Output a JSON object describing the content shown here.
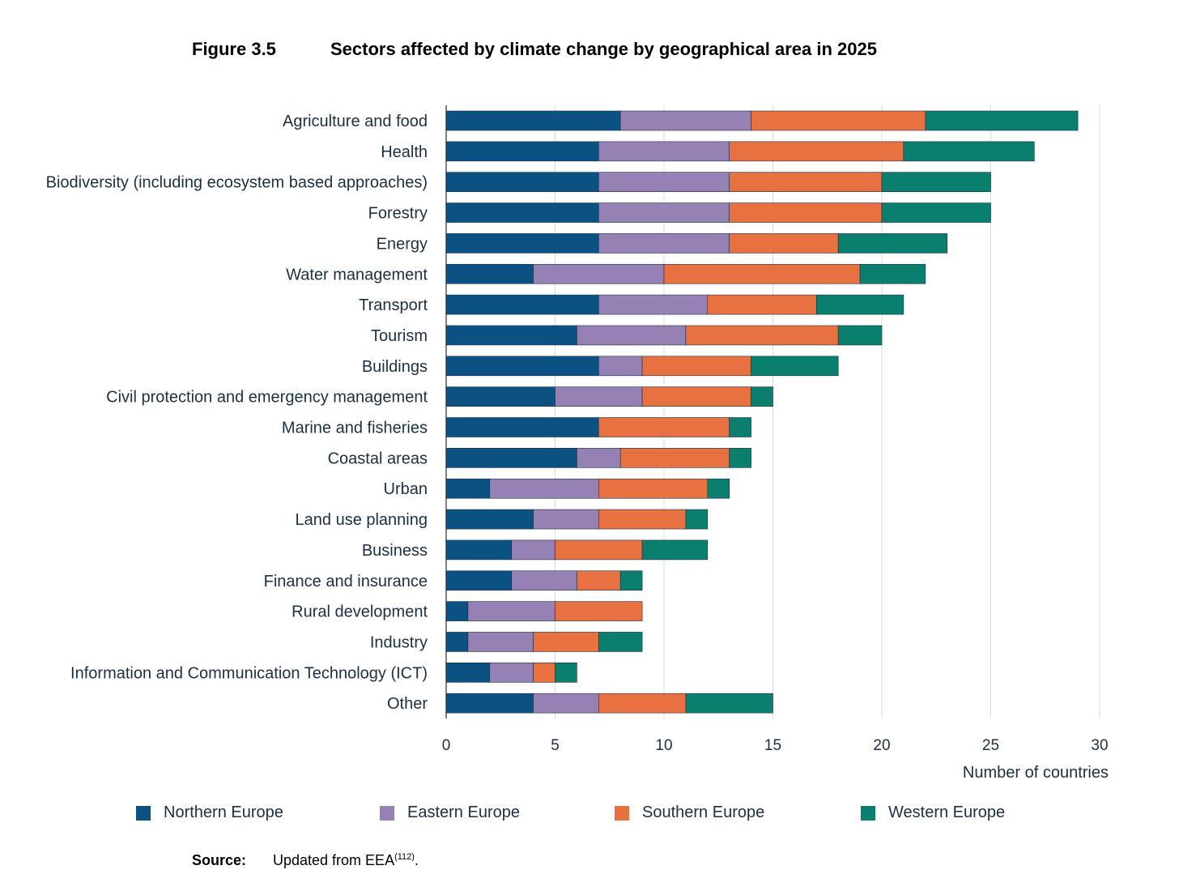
{
  "figure": {
    "number": "Figure 3.5",
    "title": "Sectors affected by climate change by geographical area in 2025"
  },
  "source": {
    "label": "Source:",
    "text": "Updated from EEA",
    "ref": "(112)",
    "end": "."
  },
  "chart_data": {
    "type": "bar",
    "orientation": "horizontal",
    "stacked": true,
    "title": "Sectors affected by climate change by geographical area in 2025",
    "xlabel": "Number of countries",
    "ylabel": "",
    "xlim": [
      0,
      30
    ],
    "xticks": [
      "0",
      "5",
      "10",
      "15",
      "20",
      "25",
      "30"
    ],
    "grid": true,
    "legend_position": "bottom",
    "categories": [
      "Agriculture and food",
      "Health",
      "Biodiversity (including ecosystem based approaches)",
      "Forestry",
      "Energy",
      "Water management",
      "Transport",
      "Tourism",
      "Buildings",
      "Civil protection and emergency management",
      "Marine and fisheries",
      "Coastal areas",
      "Urban",
      "Land use planning",
      "Business",
      "Finance and insurance",
      "Rural development",
      "Industry",
      "Information and Communication Technology (ICT)",
      "Other"
    ],
    "series": [
      {
        "name": "Northern Europe",
        "color": "#0b5283",
        "values": [
          8,
          7,
          7,
          7,
          7,
          4,
          7,
          6,
          7,
          5,
          7,
          6,
          2,
          4,
          3,
          3,
          1,
          1,
          2,
          4
        ]
      },
      {
        "name": "Eastern Europe",
        "color": "#9581b3",
        "values": [
          6,
          6,
          6,
          6,
          6,
          6,
          5,
          5,
          2,
          4,
          0,
          2,
          5,
          3,
          2,
          3,
          4,
          3,
          2,
          3
        ]
      },
      {
        "name": "Southern Europe",
        "color": "#e87142",
        "values": [
          8,
          8,
          7,
          7,
          5,
          9,
          5,
          7,
          5,
          5,
          6,
          5,
          5,
          4,
          4,
          2,
          4,
          3,
          1,
          4
        ]
      },
      {
        "name": "Western Europe",
        "color": "#0b7f6d",
        "values": [
          7,
          6,
          5,
          5,
          5,
          3,
          4,
          2,
          4,
          1,
          1,
          1,
          1,
          1,
          3,
          1,
          0,
          2,
          1,
          4
        ]
      }
    ]
  }
}
